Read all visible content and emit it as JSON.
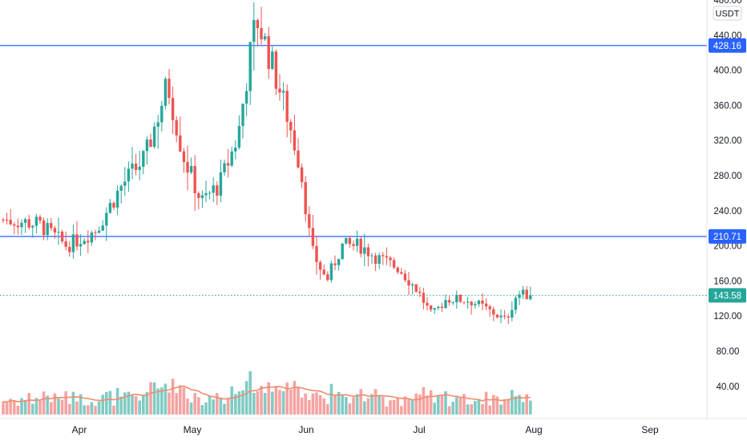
{
  "colors": {
    "up": "#26a69a",
    "down": "#ef5350",
    "vol_up": "#80cbc4",
    "vol_down": "#f5a3a1",
    "ma": "#f28b6c",
    "hline": "#2962ff",
    "last": "#26a69a",
    "axis_text": "#131722",
    "border": "#e0e3eb"
  },
  "price_axis": {
    "unit": "USDT",
    "ticks": [
      "40.00",
      "80.00",
      "120.00",
      "160.00",
      "200.00",
      "240.00",
      "280.00",
      "320.00",
      "360.00",
      "400.00",
      "440.00",
      "480.00"
    ]
  },
  "time_axis": {
    "labels": [
      "Apr",
      "May",
      "Jun",
      "Jul",
      "Aug",
      "Sep"
    ]
  },
  "horizontal_lines": [
    {
      "value": 428.16,
      "label": "428.16"
    },
    {
      "value": 210.71,
      "label": "210.71"
    }
  ],
  "last_price": {
    "value": 143.58,
    "label": "143.58"
  },
  "chart_data": {
    "type": "candlestick",
    "price_unit": "USDT",
    "ylim": [
      20,
      480
    ],
    "x_ticks": [
      "Apr",
      "May",
      "Jun",
      "Jul",
      "Aug",
      "Sep"
    ],
    "y_ticks": [
      40,
      80,
      120,
      160,
      200,
      240,
      280,
      320,
      360,
      400,
      440,
      480
    ],
    "grid": false,
    "price_levels": [
      428.16,
      210.71
    ],
    "last_price": 143.58,
    "close_points": [
      {
        "date": "Mar 10",
        "close": 230
      },
      {
        "date": "Mar 20",
        "close": 225
      },
      {
        "date": "Mar 28",
        "close": 200
      },
      {
        "date": "Apr 05",
        "close": 218
      },
      {
        "date": "Apr 12",
        "close": 270
      },
      {
        "date": "Apr 18",
        "close": 300
      },
      {
        "date": "Apr 24",
        "close": 385
      },
      {
        "date": "Apr 28",
        "close": 305
      },
      {
        "date": "May 03",
        "close": 250
      },
      {
        "date": "May 08",
        "close": 270
      },
      {
        "date": "May 13",
        "close": 325
      },
      {
        "date": "May 16",
        "close": 410
      },
      {
        "date": "May 18",
        "close": 460
      },
      {
        "date": "May 22",
        "close": 410
      },
      {
        "date": "May 26",
        "close": 355
      },
      {
        "date": "May 30",
        "close": 290
      },
      {
        "date": "Jun 02",
        "close": 195
      },
      {
        "date": "Jun 06",
        "close": 160
      },
      {
        "date": "Jun 10",
        "close": 200
      },
      {
        "date": "Jun 15",
        "close": 200
      },
      {
        "date": "Jun 20",
        "close": 185
      },
      {
        "date": "Jun 25",
        "close": 175
      },
      {
        "date": "Jun 30",
        "close": 150
      },
      {
        "date": "Jul 04",
        "close": 120
      },
      {
        "date": "Jul 08",
        "close": 140
      },
      {
        "date": "Jul 14",
        "close": 138
      },
      {
        "date": "Jul 18",
        "close": 130
      },
      {
        "date": "Jul 24",
        "close": 115
      },
      {
        "date": "Jul 27",
        "close": 145
      },
      {
        "date": "Jul 31",
        "close": 143.58
      }
    ]
  }
}
